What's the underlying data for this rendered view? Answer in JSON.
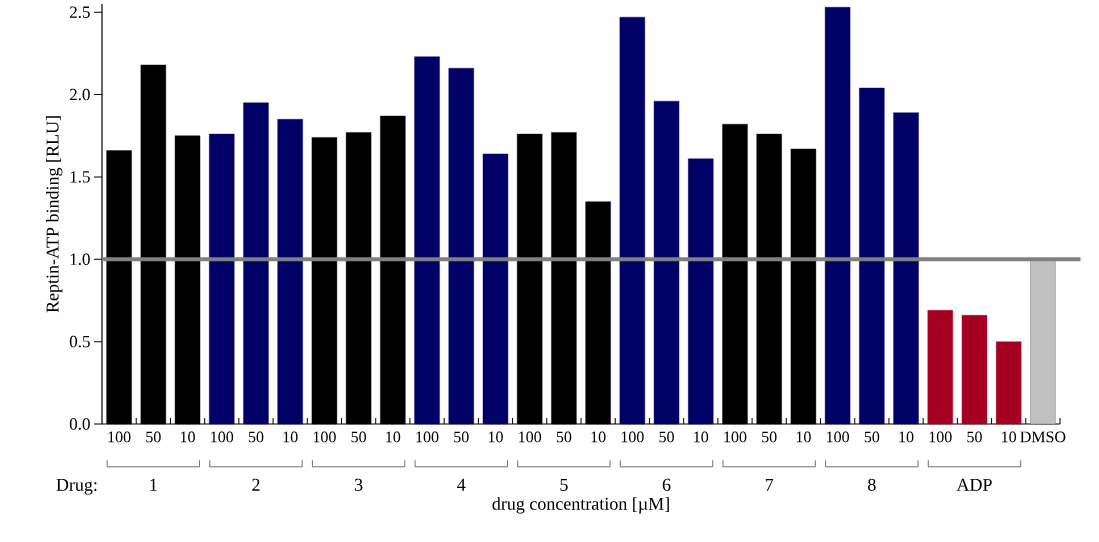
{
  "chart_data": {
    "type": "bar",
    "xlabel": "drug concentration [µM]",
    "ylabel": "Reptin-ATP binding [RLU]",
    "categories": [
      "100",
      "50",
      "10",
      "100",
      "50",
      "10",
      "100",
      "50",
      "10",
      "100",
      "50",
      "10",
      "100",
      "50",
      "10",
      "100",
      "50",
      "10",
      "100",
      "50",
      "10",
      "100",
      "50",
      "10",
      "100",
      "50",
      "10",
      "DMSO"
    ],
    "values": [
      1.66,
      2.18,
      1.75,
      1.76,
      1.95,
      1.85,
      1.74,
      1.77,
      1.87,
      2.23,
      2.16,
      1.64,
      1.76,
      1.77,
      1.35,
      2.47,
      1.96,
      1.61,
      1.82,
      1.76,
      1.67,
      2.53,
      2.04,
      1.89,
      0.69,
      0.66,
      0.5,
      1.0
    ],
    "colors": [
      "#000000",
      "#000000",
      "#000000",
      "#000066",
      "#000066",
      "#000066",
      "#000000",
      "#000000",
      "#000000",
      "#000066",
      "#000066",
      "#000066",
      "#000000",
      "#000000",
      "#000000",
      "#000066",
      "#000066",
      "#000066",
      "#000000",
      "#000000",
      "#000000",
      "#000066",
      "#000066",
      "#000066",
      "#a50021",
      "#a50021",
      "#a50021",
      "#c0c0c0"
    ],
    "ylim": [
      0,
      2.55
    ],
    "yticks": [
      {
        "value": 0,
        "label": "0.0"
      },
      {
        "value": 0.5,
        "label": "0.5"
      },
      {
        "value": 1,
        "label": "1.0"
      },
      {
        "value": 1.5,
        "label": "1.5"
      },
      {
        "value": 2,
        "label": "2.0"
      },
      {
        "value": 2.5,
        "label": "2.5"
      }
    ],
    "ref_lines": [
      {
        "axis": "y",
        "value": 1.0,
        "color": "#808080"
      }
    ],
    "annotations": [
      "Drug:",
      "1",
      "2",
      "3",
      "4",
      "5",
      "6",
      "7",
      "8",
      "ADP"
    ],
    "grid": false
  }
}
